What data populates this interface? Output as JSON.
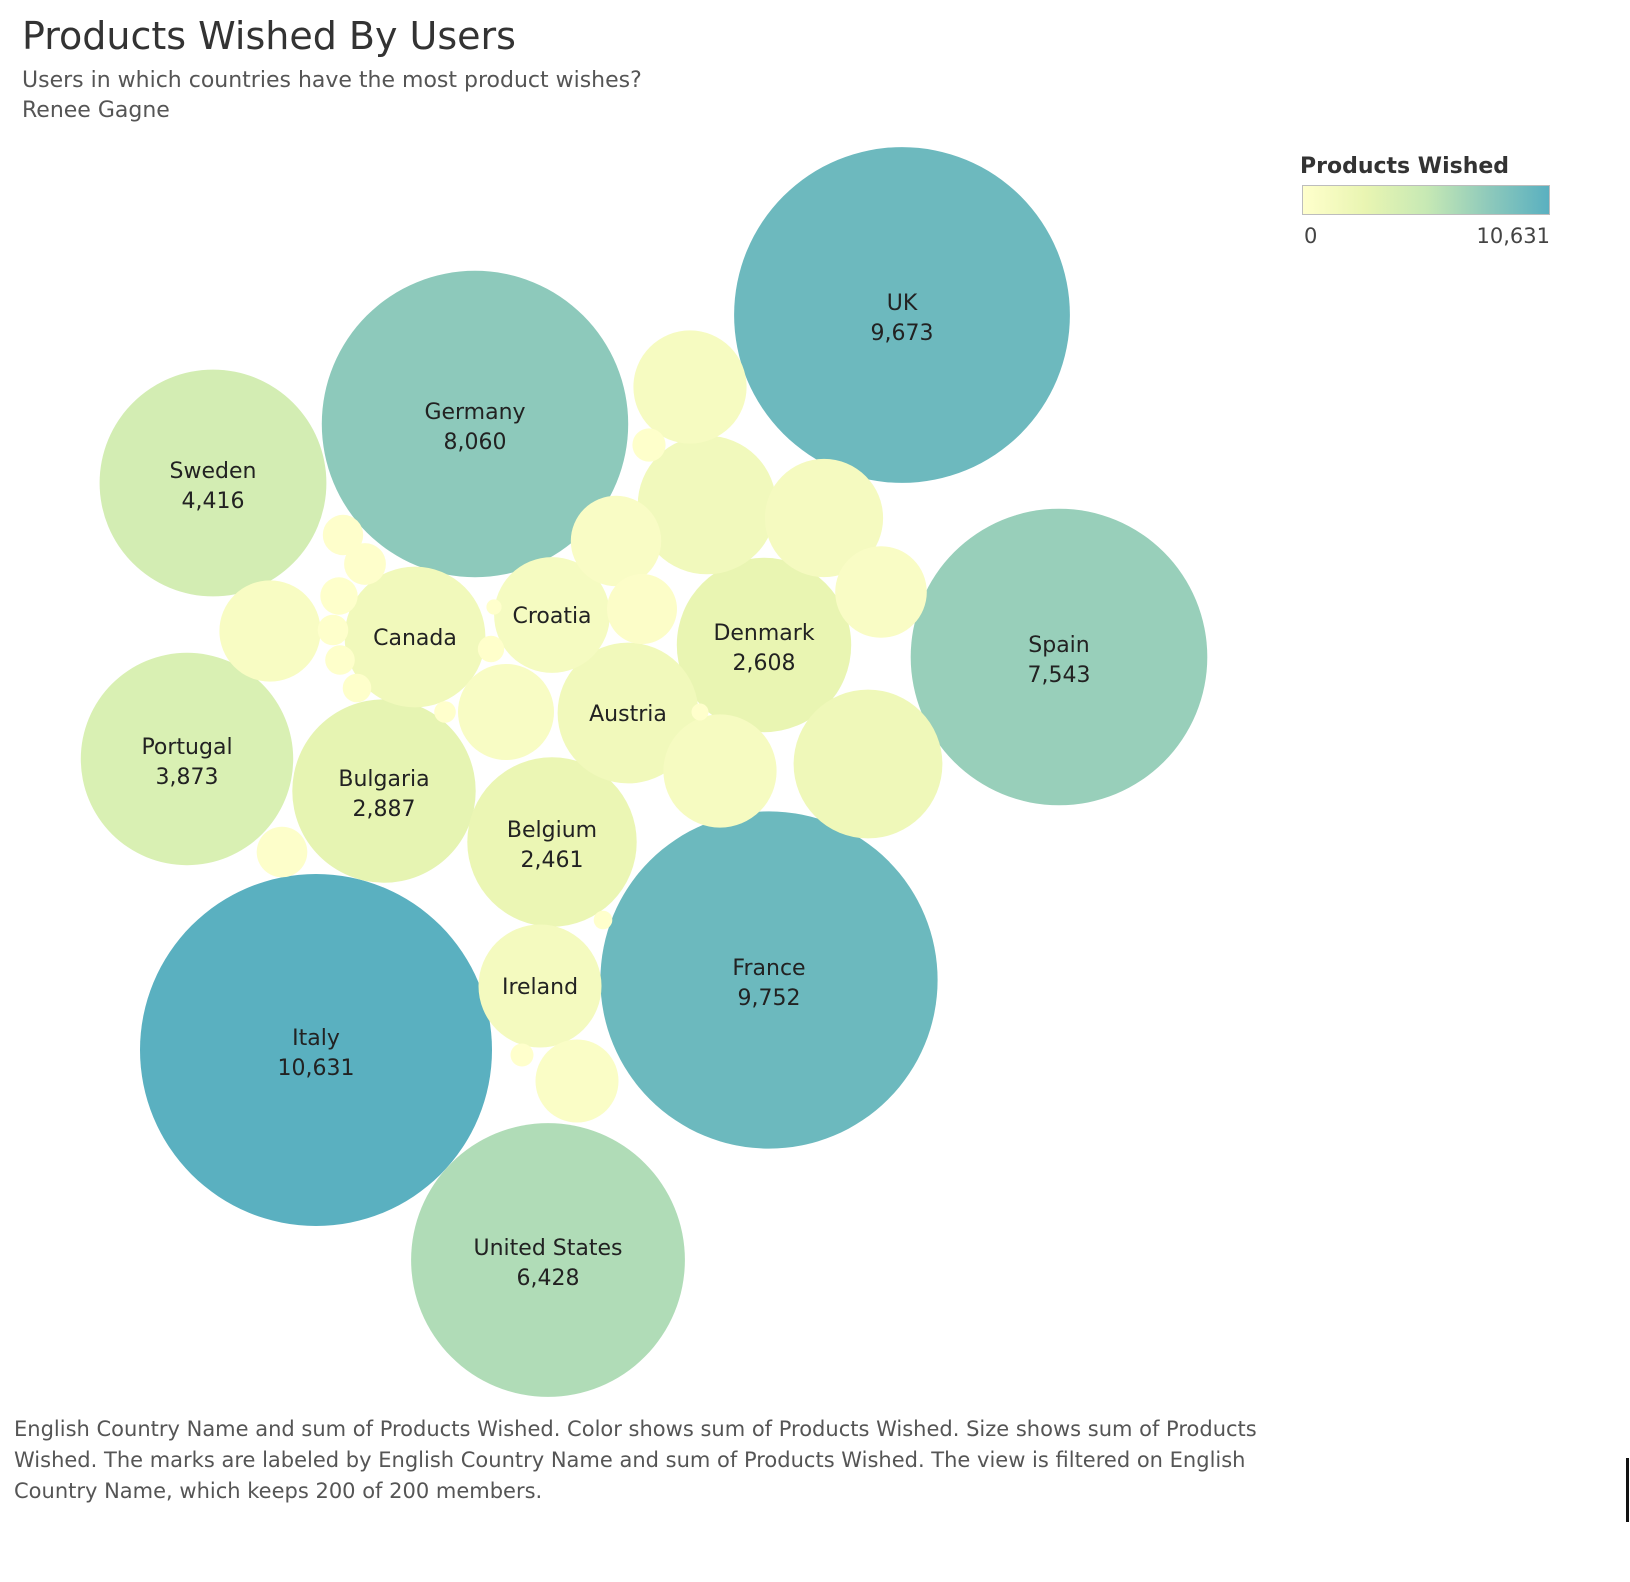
{
  "header": {
    "title": "Products Wished By Users",
    "subtitle": "Users in which countries have the most product wishes?",
    "author": "Renee Gagne"
  },
  "legend": {
    "title": "Products Wished",
    "min_label": "0",
    "max_label": "10,631",
    "color_low": "#ffffcc",
    "color_high": "#5ab0c0"
  },
  "caption": "English Country Name and sum of Products Wished.  Color shows sum of Products Wished.  Size shows sum of Products Wished.  The marks are labeled by English Country Name and sum of Products Wished. The view is filtered on English Country Name, which keeps 200 of 200 members.",
  "chart_data": {
    "type": "packed-bubble",
    "size_measure": "Products Wished",
    "color_measure": "Products Wished",
    "color_range": [
      0,
      10631
    ],
    "color_scale": [
      "#ffffcc",
      "#5ab0c0"
    ],
    "series": [
      {
        "name": "Italy",
        "value": 10631,
        "value_label": "10,631",
        "show_value": true
      },
      {
        "name": "France",
        "value": 9752,
        "value_label": "9,752",
        "show_value": true
      },
      {
        "name": "UK",
        "value": 9673,
        "value_label": "9,673",
        "show_value": true
      },
      {
        "name": "Germany",
        "value": 8060,
        "value_label": "8,060",
        "show_value": true
      },
      {
        "name": "Spain",
        "value": 7543,
        "value_label": "7,543",
        "show_value": true
      },
      {
        "name": "United States",
        "value": 6428,
        "value_label": "6,428",
        "show_value": true
      },
      {
        "name": "Sweden",
        "value": 4416,
        "value_label": "4,416",
        "show_value": true
      },
      {
        "name": "Portugal",
        "value": 3873,
        "value_label": "3,873",
        "show_value": true
      },
      {
        "name": "Bulgaria",
        "value": 2887,
        "value_label": "2,887",
        "show_value": true
      },
      {
        "name": "Denmark",
        "value": 2608,
        "value_label": "2,608",
        "show_value": true
      },
      {
        "name": "Belgium",
        "value": 2461,
        "value_label": "2,461",
        "show_value": true
      },
      {
        "name": "Austria",
        "value": 1700,
        "value_label": "",
        "show_value": false
      },
      {
        "name": "Canada",
        "value": 1700,
        "value_label": "",
        "show_value": false
      },
      {
        "name": "Croatia",
        "value": 1150,
        "value_label": "",
        "show_value": false
      },
      {
        "name": "Ireland",
        "value": 1300,
        "value_label": "",
        "show_value": false
      },
      {
        "name": "",
        "value": 1900,
        "show_value": false
      },
      {
        "name": "",
        "value": 1650,
        "show_value": false
      },
      {
        "name": "",
        "value": 1200,
        "show_value": false
      },
      {
        "name": "",
        "value": 1100,
        "show_value": false
      },
      {
        "name": "",
        "value": 1100,
        "show_value": false
      },
      {
        "name": "",
        "value": 880,
        "show_value": false
      },
      {
        "name": "",
        "value": 790,
        "show_value": false
      },
      {
        "name": "",
        "value": 720,
        "show_value": false
      },
      {
        "name": "",
        "value": 700,
        "show_value": false
      },
      {
        "name": "",
        "value": 590,
        "show_value": false
      },
      {
        "name": "",
        "value": 420,
        "show_value": false
      },
      {
        "name": "",
        "value": 220,
        "show_value": false
      },
      {
        "name": "",
        "value": 150,
        "show_value": false
      },
      {
        "name": "",
        "value": 140,
        "show_value": false
      },
      {
        "name": "",
        "value": 120,
        "show_value": false
      },
      {
        "name": "",
        "value": 95,
        "show_value": false
      },
      {
        "name": "",
        "value": 80,
        "show_value": false
      },
      {
        "name": "",
        "value": 75,
        "show_value": false
      },
      {
        "name": "",
        "value": 70,
        "show_value": false
      },
      {
        "name": "",
        "value": 60,
        "show_value": false
      },
      {
        "name": "",
        "value": 45,
        "show_value": false
      },
      {
        "name": "",
        "value": 40,
        "show_value": false
      },
      {
        "name": "",
        "value": 30,
        "show_value": false
      },
      {
        "name": "",
        "value": 25,
        "show_value": false
      },
      {
        "name": "",
        "value": 20,
        "show_value": false
      }
    ]
  }
}
